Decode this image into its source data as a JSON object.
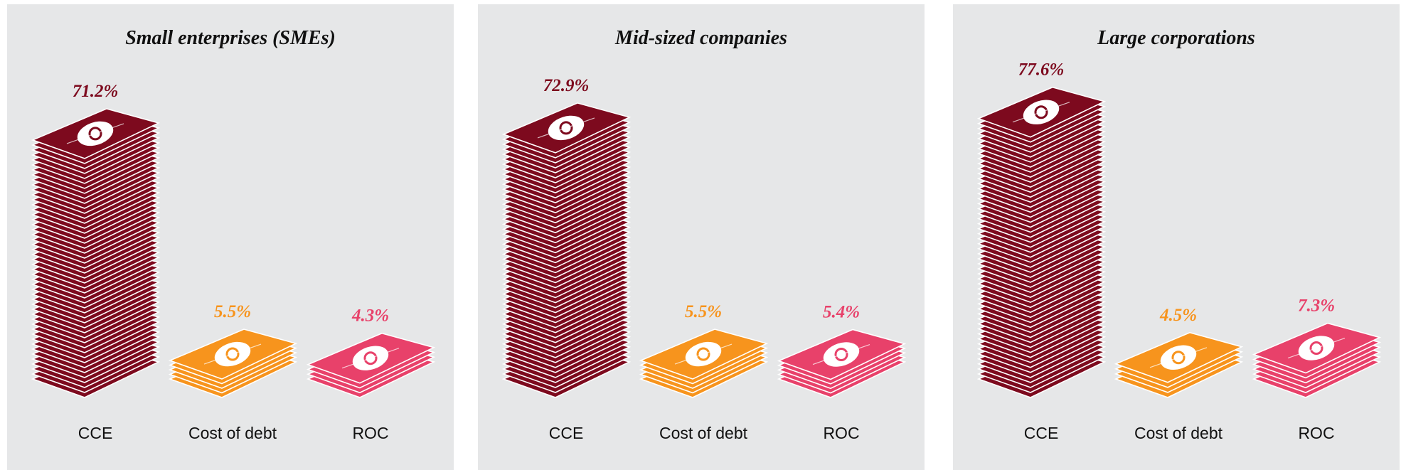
{
  "chart_data": [
    {
      "type": "bar",
      "title": "Small enterprises (SMEs)",
      "categories": [
        "CCE",
        "Cost of debt",
        "ROC"
      ],
      "values": [
        71.2,
        5.5,
        4.3
      ],
      "value_labels": [
        "71.2%",
        "5.5%",
        "4.3%"
      ],
      "colors": [
        "#7d0a1e",
        "#f7941d",
        "#e8416a"
      ]
    },
    {
      "type": "bar",
      "title": "Mid-sized companies",
      "categories": [
        "CCE",
        "Cost of debt",
        "ROC"
      ],
      "values": [
        72.9,
        5.5,
        5.4
      ],
      "value_labels": [
        "72.9%",
        "5.5%",
        "5.4%"
      ],
      "colors": [
        "#7d0a1e",
        "#f7941d",
        "#e8416a"
      ]
    },
    {
      "type": "bar",
      "title": "Large corporations",
      "categories": [
        "CCE",
        "Cost of debt",
        "ROC"
      ],
      "values": [
        77.6,
        4.5,
        7.3
      ],
      "value_labels": [
        "77.6%",
        "4.5%",
        "7.3%"
      ],
      "colors": [
        "#7d0a1e",
        "#f7941d",
        "#e8416a"
      ]
    }
  ]
}
